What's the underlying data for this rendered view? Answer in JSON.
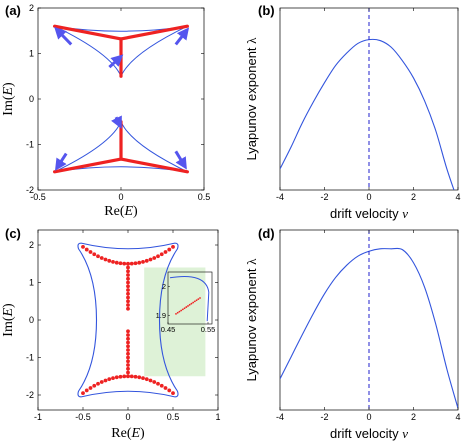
{
  "colors": {
    "curve": "#3355dd",
    "spectrum": "#ee2222",
    "arrow": "#5555ee",
    "inset_bg": "#d8f0d0",
    "dashed": "#2222cc"
  },
  "chart_data": [
    {
      "panel": "(a)",
      "type": "scatter",
      "xlabel_main": "Re(",
      "xlabel_var": "E",
      "xlabel_end": ")",
      "ylabel_main": "Im(",
      "ylabel_var": "E",
      "ylabel_end": ")",
      "xlim": [
        -0.5,
        0.5
      ],
      "ylim": [
        -2,
        2
      ],
      "xticks": [
        -0.5,
        0,
        0.5
      ],
      "yticks": [
        -2,
        -1,
        0,
        1,
        2
      ],
      "xtick_labels": [
        "-0.5",
        "0",
        "0.5"
      ],
      "ytick_labels": [
        "-2",
        "-1",
        "0",
        "1",
        "2"
      ],
      "vertices": [
        [
          -0.4,
          1.6
        ],
        [
          0.4,
          1.6
        ],
        [
          -0.4,
          -1.6
        ],
        [
          0.4,
          -1.6
        ]
      ],
      "cusps": [
        [
          0,
          0.5
        ],
        [
          0,
          -0.5
        ]
      ],
      "spectrum_segments": [
        [
          [
            -0.4,
            1.6
          ],
          [
            0,
            1.32
          ]
        ],
        [
          [
            0.4,
            1.6
          ],
          [
            0,
            1.32
          ]
        ],
        [
          [
            0,
            1.32
          ],
          [
            0,
            0.5
          ]
        ],
        [
          [
            -0.4,
            -1.6
          ],
          [
            0,
            -1.32
          ]
        ],
        [
          [
            0.4,
            -1.6
          ],
          [
            0,
            -1.32
          ]
        ],
        [
          [
            0,
            -1.32
          ],
          [
            0,
            -0.5
          ]
        ]
      ],
      "arrows": [
        {
          "from": [
            -0.3,
            1.2
          ],
          "to": [
            -0.38,
            1.5
          ]
        },
        {
          "from": [
            0.33,
            1.2
          ],
          "to": [
            0.39,
            1.48
          ]
        },
        {
          "from": [
            -0.07,
            0.7
          ],
          "to": [
            -0.01,
            0.9
          ]
        },
        {
          "from": [
            -0.03,
            -0.4
          ],
          "to": [
            -0.01,
            -0.55
          ]
        },
        {
          "from": [
            -0.33,
            -1.2
          ],
          "to": [
            -0.38,
            -1.48
          ]
        },
        {
          "from": [
            0.33,
            -1.15
          ],
          "to": [
            0.38,
            -1.45
          ]
        }
      ]
    },
    {
      "panel": "(b)",
      "type": "line",
      "xlabel": "drift velocity",
      "xlabel_var": "v",
      "ylabel": "Lyapunov exponent",
      "ylabel_var": "λ",
      "xlim": [
        -4,
        4
      ],
      "ylim": [
        0,
        1.9
      ],
      "xticks": [
        -4,
        -2,
        0,
        2,
        4
      ],
      "xtick_labels": [
        "-4",
        "-2",
        "0",
        "2",
        "4"
      ],
      "x": [
        -4,
        -3.5,
        -3,
        -2.5,
        -2,
        -1.5,
        -1,
        -0.5,
        0,
        0.5,
        1,
        1.5,
        2,
        2.5,
        3,
        3.5,
        4
      ],
      "y": [
        0.22,
        0.45,
        0.7,
        0.92,
        1.12,
        1.3,
        1.43,
        1.53,
        1.57,
        1.56,
        1.49,
        1.35,
        1.17,
        0.93,
        0.62,
        0.22,
        -0.12
      ],
      "vline_x": 0
    },
    {
      "panel": "(c)",
      "type": "scatter",
      "xlabel_main": "Re(",
      "xlabel_var": "E",
      "xlabel_end": ")",
      "ylabel_main": "Im(",
      "ylabel_var": "E",
      "ylabel_end": ")",
      "xlim": [
        -1,
        1
      ],
      "ylim": [
        -2.4,
        2.4
      ],
      "xticks": [
        -1,
        -0.5,
        0,
        0.5,
        1
      ],
      "yticks": [
        -2,
        -1,
        0,
        1,
        2
      ],
      "xtick_labels": [
        "-1",
        "-0.5",
        "0",
        "0.5",
        "1"
      ],
      "ytick_labels": [
        "-2",
        "-1",
        "0",
        "1",
        "2"
      ],
      "inset": {
        "xlim": [
          0.45,
          0.56
        ],
        "ylim": [
          1.87,
          2.05
        ],
        "xticks": [
          0.45,
          0.55
        ],
        "yticks": [
          1.9,
          2
        ],
        "xtick_labels": [
          "0.45",
          "0.55"
        ],
        "ytick_labels": [
          "1.9",
          "2"
        ],
        "dots_from": [
          0.47,
          1.905
        ],
        "dots_to": [
          0.53,
          1.96
        ]
      }
    },
    {
      "panel": "(d)",
      "type": "line",
      "xlabel": "drift velocity",
      "xlabel_var": "v",
      "ylabel": "Lyapunov exponent",
      "ylabel_var": "λ",
      "xlim": [
        -4,
        4
      ],
      "ylim": [
        0,
        2.2
      ],
      "xticks": [
        -4,
        -2,
        0,
        2,
        4
      ],
      "xtick_labels": [
        "-4",
        "-2",
        "0",
        "2",
        "4"
      ],
      "x": [
        -4,
        -3.5,
        -3,
        -2.5,
        -2,
        -1.5,
        -1,
        -0.5,
        0,
        0.5,
        1,
        1.5,
        2,
        2.5,
        3,
        3.5,
        4
      ],
      "y": [
        0.38,
        0.65,
        0.92,
        1.18,
        1.42,
        1.62,
        1.77,
        1.88,
        1.94,
        1.97,
        1.97,
        1.96,
        1.8,
        1.5,
        1.05,
        0.5,
        0.02
      ],
      "vline_x": 0
    }
  ]
}
